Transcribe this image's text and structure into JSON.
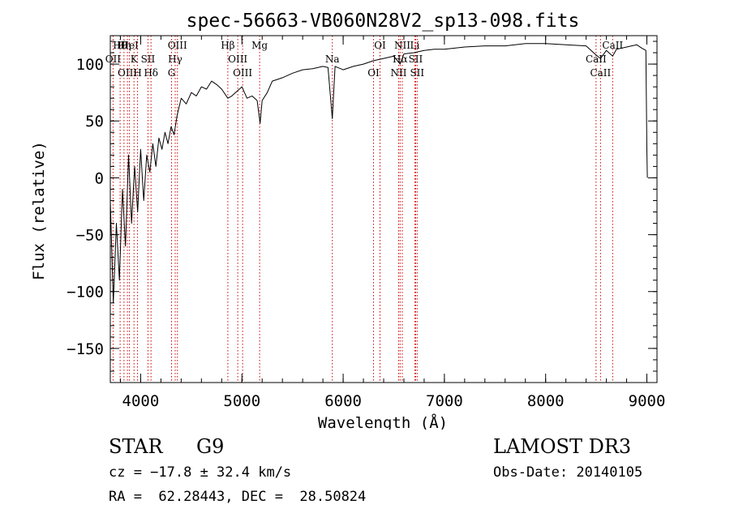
{
  "chart_data": {
    "type": "line",
    "title": "spec-56663-VB060N28V2_sp13-098.fits",
    "xlabel": "Wavelength (Å)",
    "ylabel": "Flux (relative)",
    "xlim": [
      3700,
      9100
    ],
    "ylim": [
      -180,
      125
    ],
    "xticks": [
      4000,
      5000,
      6000,
      7000,
      8000,
      9000
    ],
    "yticks": [
      -150,
      -100,
      -50,
      0,
      50,
      100
    ],
    "xminor_step": 200,
    "yminor_step": 10,
    "series": [
      {
        "name": "flux",
        "x": [
          3700,
          3730,
          3760,
          3790,
          3820,
          3850,
          3880,
          3910,
          3940,
          3970,
          4000,
          4030,
          4060,
          4090,
          4120,
          4150,
          4180,
          4210,
          4240,
          4270,
          4300,
          4330,
          4360,
          4400,
          4450,
          4500,
          4550,
          4600,
          4650,
          4700,
          4750,
          4800,
          4861,
          4900,
          4950,
          5000,
          5050,
          5100,
          5150,
          5180,
          5200,
          5250,
          5300,
          5400,
          5500,
          5600,
          5700,
          5800,
          5850,
          5893,
          5920,
          6000,
          6100,
          6200,
          6300,
          6400,
          6500,
          6563,
          6600,
          6700,
          6800,
          6900,
          7000,
          7200,
          7400,
          7600,
          7800,
          8000,
          8200,
          8400,
          8498,
          8542,
          8600,
          8662,
          8700,
          8800,
          8900,
          8950,
          8990,
          9000,
          9005
        ],
        "y": [
          -20,
          -110,
          -40,
          -90,
          -10,
          -60,
          20,
          -40,
          10,
          -30,
          25,
          -20,
          20,
          5,
          30,
          10,
          35,
          25,
          40,
          30,
          45,
          38,
          55,
          70,
          65,
          75,
          72,
          80,
          78,
          85,
          82,
          78,
          70,
          72,
          76,
          80,
          70,
          72,
          68,
          48,
          68,
          75,
          85,
          88,
          92,
          95,
          96,
          98,
          97,
          52,
          98,
          95,
          98,
          100,
          103,
          105,
          107,
          100,
          109,
          110,
          112,
          113,
          113,
          115,
          116,
          116,
          118,
          118,
          117,
          116,
          108,
          105,
          112,
          107,
          113,
          115,
          117,
          114,
          112,
          25,
          0
        ]
      }
    ],
    "lines": [
      {
        "name": "Hθ",
        "wave": 3797
      },
      {
        "name": "OII",
        "wave": 3727
      },
      {
        "name": "OIII",
        "wave": 3869
      },
      {
        "name": "Hη",
        "wave": 3835
      },
      {
        "name": "K",
        "wave": 3934
      },
      {
        "name": "H",
        "wave": 3969
      },
      {
        "name": "HeI",
        "wave": 3889
      },
      {
        "name": "SII",
        "wave": 4072
      },
      {
        "name": "Hδ",
        "wave": 4102
      },
      {
        "name": "OIII",
        "wave": 4363
      },
      {
        "name": "Hγ",
        "wave": 4341
      },
      {
        "name": "G",
        "wave": 4305
      },
      {
        "name": "Hβ",
        "wave": 4861
      },
      {
        "name": "OIII",
        "wave": 4959
      },
      {
        "name": "OIII",
        "wave": 5007
      },
      {
        "name": "Mg",
        "wave": 5175
      },
      {
        "name": "Na",
        "wave": 5893
      },
      {
        "name": "OI",
        "wave": 6300
      },
      {
        "name": "OI",
        "wave": 6364
      },
      {
        "name": "Hα",
        "wave": 6563
      },
      {
        "name": "NII",
        "wave": 6548
      },
      {
        "name": "NII",
        "wave": 6584
      },
      {
        "name": "SII",
        "wave": 6716
      },
      {
        "name": "SII",
        "wave": 6731
      },
      {
        "name": "Li",
        "wave": 6708
      },
      {
        "name": "CaII",
        "wave": 8498
      },
      {
        "name": "CaII",
        "wave": 8542
      },
      {
        "name": "CaII",
        "wave": 8662
      }
    ],
    "colors": {
      "spectrum": "#000000",
      "lines": "#cc0000",
      "axes": "#000000"
    }
  },
  "info": {
    "class": "STAR",
    "subclass": "G9",
    "survey": "LAMOST DR3",
    "cz": "cz = −17.8 ± 32.4 km/s",
    "obs_date": "Obs-Date: 20140105",
    "coords": "RA =  62.28443, DEC =  28.50824"
  }
}
